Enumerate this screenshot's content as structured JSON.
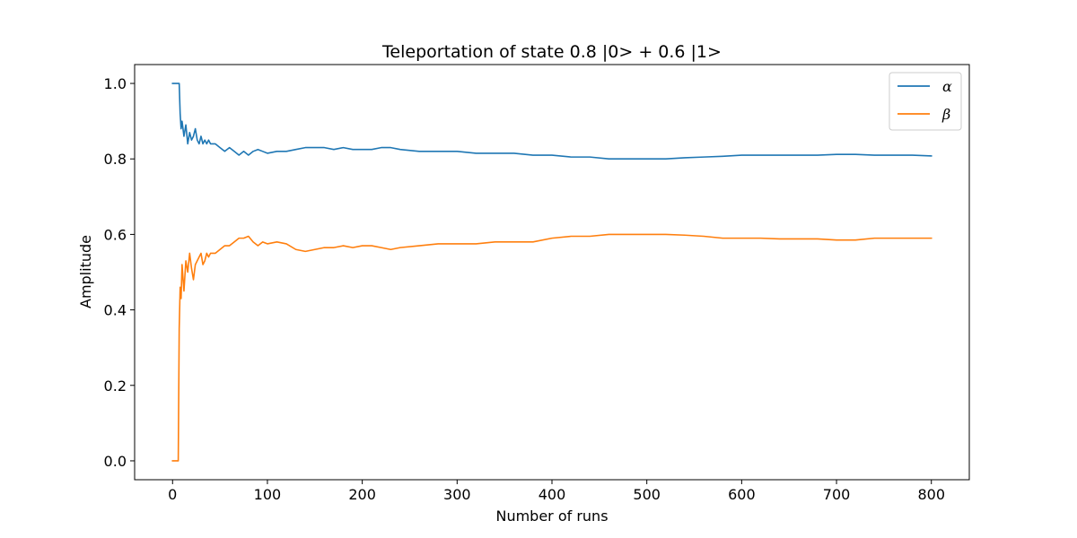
{
  "chart_data": {
    "type": "line",
    "title": "Teleportation of state 0.8 |0> + 0.6 |1>",
    "xlabel": "Number of runs",
    "ylabel": "Amplitude",
    "xlim": [
      -40,
      840
    ],
    "ylim": [
      -0.05,
      1.05
    ],
    "xticks": [
      0,
      100,
      200,
      300,
      400,
      500,
      600,
      700,
      800
    ],
    "xtick_labels": [
      "0",
      "100",
      "200",
      "300",
      "400",
      "500",
      "600",
      "700",
      "800"
    ],
    "yticks": [
      0.0,
      0.2,
      0.4,
      0.6,
      0.8,
      1.0
    ],
    "ytick_labels": [
      "0.0",
      "0.2",
      "0.4",
      "0.6",
      "0.8",
      "1.0"
    ],
    "grid": false,
    "legend_position": "top-right",
    "series": [
      {
        "name": "α",
        "color": "#1f77b4",
        "x": [
          0,
          2,
          4,
          6,
          7,
          8,
          9,
          10,
          12,
          14,
          16,
          18,
          20,
          22,
          24,
          26,
          28,
          30,
          32,
          34,
          36,
          38,
          40,
          45,
          50,
          55,
          60,
          65,
          70,
          75,
          80,
          85,
          90,
          95,
          100,
          110,
          120,
          130,
          140,
          150,
          160,
          170,
          180,
          190,
          200,
          210,
          220,
          230,
          240,
          260,
          280,
          300,
          320,
          340,
          360,
          380,
          400,
          420,
          440,
          460,
          480,
          500,
          520,
          540,
          560,
          580,
          600,
          620,
          640,
          660,
          680,
          700,
          720,
          740,
          760,
          780,
          800
        ],
        "y": [
          1.0,
          1.0,
          1.0,
          1.0,
          1.0,
          0.92,
          0.88,
          0.9,
          0.86,
          0.89,
          0.84,
          0.87,
          0.85,
          0.86,
          0.88,
          0.85,
          0.84,
          0.86,
          0.84,
          0.85,
          0.84,
          0.85,
          0.84,
          0.84,
          0.83,
          0.82,
          0.83,
          0.82,
          0.81,
          0.82,
          0.81,
          0.82,
          0.825,
          0.82,
          0.815,
          0.82,
          0.82,
          0.825,
          0.83,
          0.83,
          0.83,
          0.825,
          0.83,
          0.825,
          0.825,
          0.825,
          0.83,
          0.83,
          0.825,
          0.82,
          0.82,
          0.82,
          0.815,
          0.815,
          0.815,
          0.81,
          0.81,
          0.805,
          0.805,
          0.8,
          0.8,
          0.8,
          0.8,
          0.803,
          0.805,
          0.807,
          0.81,
          0.81,
          0.81,
          0.81,
          0.81,
          0.812,
          0.812,
          0.81,
          0.81,
          0.81,
          0.808
        ]
      },
      {
        "name": "β",
        "color": "#ff7f0e",
        "x": [
          0,
          2,
          4,
          6,
          7,
          8,
          9,
          10,
          12,
          14,
          16,
          18,
          20,
          22,
          24,
          26,
          28,
          30,
          32,
          34,
          36,
          38,
          40,
          45,
          50,
          55,
          60,
          65,
          70,
          75,
          80,
          85,
          90,
          95,
          100,
          110,
          120,
          130,
          140,
          150,
          160,
          170,
          180,
          190,
          200,
          210,
          220,
          230,
          240,
          260,
          280,
          300,
          320,
          340,
          360,
          380,
          400,
          420,
          440,
          460,
          480,
          500,
          520,
          540,
          560,
          580,
          600,
          620,
          640,
          660,
          680,
          700,
          720,
          740,
          760,
          780,
          800
        ],
        "y": [
          0.0,
          0.0,
          0.0,
          0.0,
          0.35,
          0.46,
          0.43,
          0.52,
          0.45,
          0.53,
          0.5,
          0.55,
          0.51,
          0.48,
          0.52,
          0.53,
          0.54,
          0.55,
          0.52,
          0.53,
          0.55,
          0.54,
          0.55,
          0.55,
          0.56,
          0.57,
          0.57,
          0.58,
          0.59,
          0.59,
          0.595,
          0.58,
          0.57,
          0.58,
          0.575,
          0.58,
          0.575,
          0.56,
          0.555,
          0.56,
          0.565,
          0.565,
          0.57,
          0.565,
          0.57,
          0.57,
          0.565,
          0.56,
          0.565,
          0.57,
          0.575,
          0.575,
          0.575,
          0.58,
          0.58,
          0.58,
          0.59,
          0.595,
          0.595,
          0.6,
          0.6,
          0.6,
          0.6,
          0.598,
          0.595,
          0.59,
          0.59,
          0.59,
          0.588,
          0.588,
          0.588,
          0.585,
          0.585,
          0.59,
          0.59,
          0.59,
          0.59
        ]
      }
    ]
  }
}
